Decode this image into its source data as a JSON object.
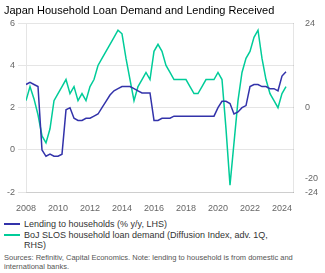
{
  "chart_data": {
    "type": "line",
    "title": "Japan Household Loan Demand and Lending Received",
    "annotations": [
      "Sources: Refinitiv, Capital Economics. Note: lending to household is from domestic and\ninternational banks."
    ],
    "x": [
      2008.0,
      2008.25,
      2008.5,
      2008.75,
      2009.0,
      2009.25,
      2009.5,
      2009.75,
      2010.0,
      2010.25,
      2010.5,
      2010.75,
      2011.0,
      2011.25,
      2011.5,
      2011.75,
      2012.0,
      2012.25,
      2012.5,
      2012.75,
      2013.0,
      2013.25,
      2013.5,
      2013.75,
      2014.0,
      2014.25,
      2014.5,
      2014.75,
      2015.0,
      2015.25,
      2015.5,
      2015.75,
      2016.0,
      2016.25,
      2016.5,
      2016.75,
      2017.0,
      2017.25,
      2017.5,
      2017.75,
      2018.0,
      2018.25,
      2018.5,
      2018.75,
      2019.0,
      2019.25,
      2019.5,
      2019.75,
      2020.0,
      2020.25,
      2020.5,
      2020.75,
      2021.0,
      2021.25,
      2021.5,
      2021.75,
      2022.0,
      2022.25,
      2022.5,
      2022.75,
      2023.0,
      2023.25,
      2023.5,
      2023.75,
      2024.0,
      2024.25
    ],
    "series": [
      {
        "name": "Lending to households (% y/y, LHS)",
        "color": "#3333aa",
        "axis": "y",
        "values": [
          3.1,
          3.2,
          3.1,
          3.0,
          0.0,
          -0.3,
          -0.2,
          -0.3,
          -0.3,
          -0.2,
          1.9,
          2.0,
          1.5,
          1.4,
          1.4,
          1.5,
          1.5,
          1.6,
          1.7,
          2.0,
          2.3,
          2.6,
          2.8,
          2.9,
          3.0,
          3.0,
          3.0,
          2.9,
          2.8,
          2.7,
          2.7,
          2.7,
          1.4,
          1.4,
          1.5,
          1.5,
          1.5,
          1.6,
          1.6,
          1.6,
          1.6,
          1.6,
          1.6,
          1.6,
          1.6,
          1.6,
          1.6,
          1.6,
          2.0,
          2.3,
          2.3,
          2.2,
          1.7,
          1.8,
          2.0,
          2.1,
          3.0,
          3.1,
          3.1,
          3.0,
          3.0,
          2.9,
          2.9,
          2.8,
          3.5,
          3.7
        ]
      },
      {
        "name": "BoJ SLOS household loan demand (Diffusion Index, adv. 1Q,\nRHS)",
        "color": "#00cc99",
        "axis": "y2",
        "values": [
          2.0,
          6.0,
          2.5,
          -2.0,
          -8.0,
          -10.0,
          -6.0,
          2.0,
          4.0,
          6.0,
          8.0,
          4.0,
          6.0,
          2.0,
          4.0,
          2.0,
          6.0,
          8.0,
          12.0,
          14.0,
          16.0,
          18.0,
          20.0,
          22.0,
          21.0,
          14.0,
          8.0,
          2.0,
          6.0,
          8.0,
          10.0,
          8.0,
          16.0,
          18.0,
          16.0,
          12.0,
          10.0,
          8.0,
          8.0,
          8.0,
          8.0,
          6.0,
          4.0,
          4.0,
          6.0,
          8.0,
          8.0,
          8.0,
          10.0,
          8.0,
          -6.0,
          -22.0,
          -10.0,
          2.0,
          10.0,
          14.0,
          16.0,
          20.0,
          22.0,
          14.0,
          8.0,
          4.0,
          2.0,
          0.0,
          4.0,
          6.0
        ]
      }
    ],
    "xlim": [
      2008,
      2024.75
    ],
    "xticks": [
      2008,
      2010,
      2012,
      2014,
      2016,
      2018,
      2020,
      2022,
      2024
    ],
    "ylim": [
      -2,
      6
    ],
    "yticks": [
      -2,
      0,
      2,
      4,
      6
    ],
    "y2lim": [
      -24,
      24
    ],
    "y2ticks": [
      -24,
      -20,
      0,
      24
    ],
    "grid": true,
    "legend": "bottom"
  }
}
